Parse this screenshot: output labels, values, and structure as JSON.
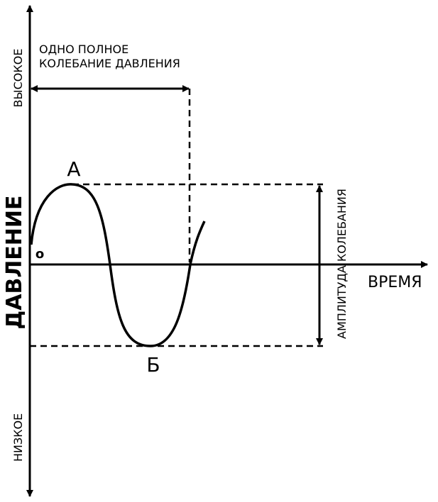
{
  "axes": {
    "y_label": "ДАВЛЕНИЕ",
    "y_high": "ВЫСОКОЕ",
    "y_low": "НИЗКОЕ",
    "x_label": "ВРЕМЯ",
    "origin": "о"
  },
  "period": {
    "line1": "ОДНО ПОЛНОЕ",
    "line2": "КОЛЕБАНИЕ ДАВЛЕНИЯ"
  },
  "amplitude": "АМПЛИТУДА КОЛЕБАНИЯ",
  "points": {
    "peak": "А",
    "trough": "Б"
  }
}
